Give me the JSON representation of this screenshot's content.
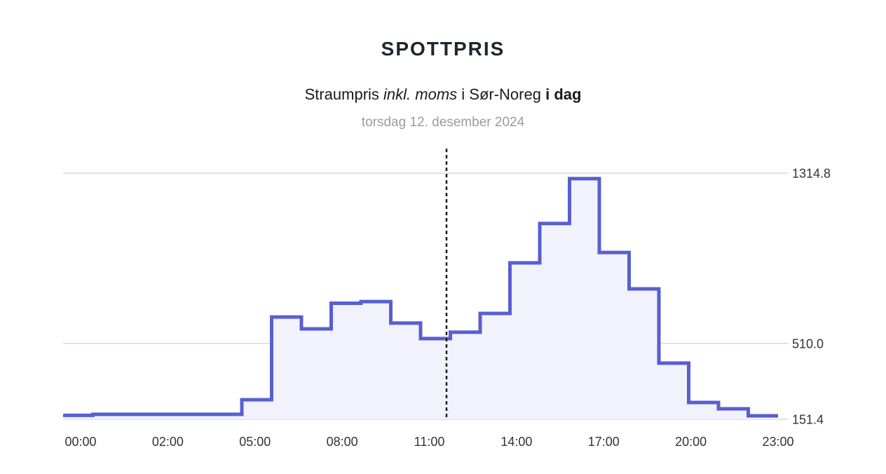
{
  "header": {
    "title": "SPOTTPRIS",
    "subtitle": {
      "prefix": "Straumpris ",
      "italic": "inkl. moms",
      "middle": " i Sør-Noreg ",
      "bold": "i dag"
    },
    "date": "torsdag 12. desember 2024"
  },
  "chart_data": {
    "type": "area",
    "subtype": "step-after-hourly-price-curve",
    "title": "SPOTTPRIS",
    "subtitle": "Straumpris inkl. moms i Sør-Noreg i dag",
    "date_label": "torsdag 12. desember 2024",
    "x": [
      0,
      1,
      2,
      3,
      4,
      5,
      6,
      7,
      8,
      9,
      10,
      11,
      12,
      13,
      14,
      15,
      16,
      17,
      18,
      19,
      20,
      21,
      22,
      23
    ],
    "values": [
      170,
      175,
      175,
      175,
      175,
      175,
      244,
      635,
      579,
      700,
      708,
      606,
      533,
      563,
      652,
      891,
      1077,
      1289,
      940,
      768,
      417,
      231,
      201,
      168
    ],
    "x_tick_labels": [
      "00:00",
      "02:00",
      "05:00",
      "08:00",
      "11:00",
      "14:00",
      "17:00",
      "20:00",
      "23:00"
    ],
    "y_ticks": [
      {
        "value": 1314.8,
        "label": "1314.8"
      },
      {
        "value": 510.0,
        "label": "510.0"
      },
      {
        "value": 151.4,
        "label": "151.4"
      }
    ],
    "ylim": [
      151.4,
      1314.8
    ],
    "now_hour": 12.87,
    "grid": "horizontal-only",
    "legend_position": "none",
    "colors": {
      "line": "#585fd2",
      "fill": "#f1f2fb",
      "gridline": "#d9d9d9",
      "now_line": "#1c1c1c"
    }
  }
}
